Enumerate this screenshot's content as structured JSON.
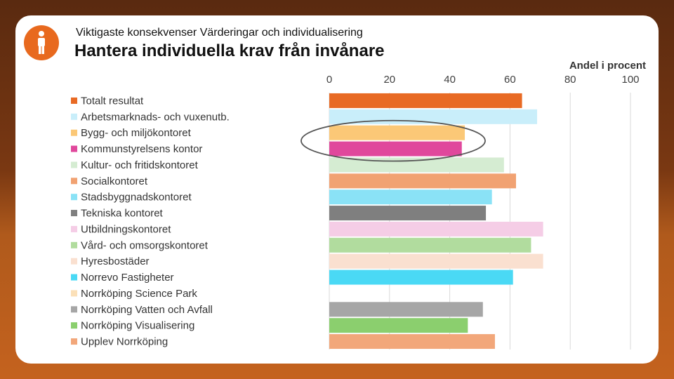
{
  "header": {
    "subtitle": "Viktigaste konsekvenser Värderingar och individualisering",
    "title": "Hantera individuella krav från invånare",
    "icon": "person-icon"
  },
  "colors": {
    "accent": "#e8691e",
    "highlight_ellipse": "#555555"
  },
  "chart_data": {
    "type": "bar",
    "orientation": "horizontal",
    "axis_label": "Andel i procent",
    "xlim": [
      0,
      100
    ],
    "ticks": [
      0,
      20,
      40,
      60,
      80,
      100
    ],
    "grid": true,
    "legend": "left",
    "highlight": [
      "Bygg- och miljökontoret",
      "Kommunstyrelsens kontor"
    ],
    "categories": [
      "Totalt resultat",
      "Arbetsmarknads- och vuxenutb.",
      "Bygg- och miljökontoret",
      "Kommunstyrelsens kontor",
      "Kultur- och fritidskontoret",
      "Socialkontoret",
      "Stadsbyggnadskontoret",
      "Tekniska kontoret",
      "Utbildningskontoret",
      "Vård- och omsorgskontoret",
      "Hyresbostäder",
      "Norrevo Fastigheter",
      "Norrköping Science Park",
      "Norrköping Vatten och Avfall",
      "Norrköping Visualisering",
      "Upplev Norrköping"
    ],
    "values": [
      64,
      69,
      45,
      44,
      58,
      62,
      54,
      52,
      71,
      67,
      71,
      61,
      0,
      51,
      46,
      55
    ],
    "colors": [
      "#e86a24",
      "#c9eefa",
      "#fbc877",
      "#e0489c",
      "#d5ecd2",
      "#f1a272",
      "#8ae2f6",
      "#7f7f7f",
      "#f5cde6",
      "#b1dc9e",
      "#fae0d0",
      "#4ad9f5",
      "#fbe0b8",
      "#a6a6a6",
      "#8bcf6e",
      "#f2a77a"
    ]
  }
}
